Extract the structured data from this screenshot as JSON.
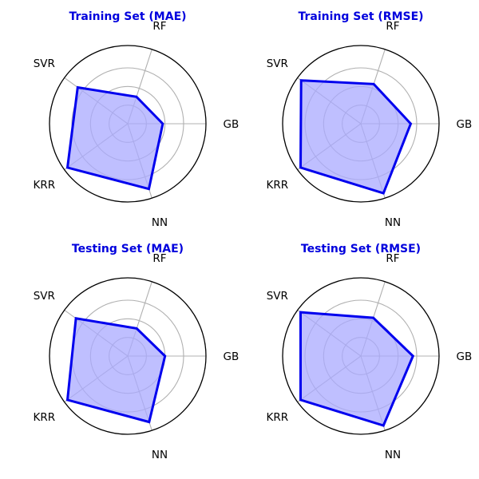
{
  "colors": {
    "series": "#0000ee",
    "fill": "#aaaaff",
    "grid": "#b0b0b0",
    "title": "#0000dd",
    "outer_circle": "#000000"
  },
  "chart_data": [
    {
      "type": "radar",
      "title": "Training Set (MAE)",
      "axes": [
        "GB",
        "RF",
        "SVR",
        "KRR",
        "NN"
      ],
      "values": [
        0.47,
        0.38,
        0.83,
        1.0,
        0.92
      ],
      "rmax": 1.05,
      "grid_rings": [
        0.25,
        0.5,
        0.75
      ],
      "grid": true,
      "legend": "none"
    },
    {
      "type": "radar",
      "title": "Training Set (RMSE)",
      "axes": [
        "GB",
        "RF",
        "SVR",
        "KRR",
        "NN"
      ],
      "values": [
        0.67,
        0.56,
        0.99,
        1.0,
        0.98
      ],
      "rmax": 1.05,
      "grid_rings": [
        0.25,
        0.5,
        0.75
      ],
      "grid": true,
      "legend": "none"
    },
    {
      "type": "radar",
      "title": "Testing Set (MAE)",
      "axes": [
        "GB",
        "RF",
        "SVR",
        "KRR",
        "NN"
      ],
      "values": [
        0.5,
        0.39,
        0.86,
        1.0,
        0.93
      ],
      "rmax": 1.05,
      "grid_rings": [
        0.25,
        0.5,
        0.75
      ],
      "grid": true,
      "legend": "none"
    },
    {
      "type": "radar",
      "title": "Testing Set (RMSE)",
      "axes": [
        "GB",
        "RF",
        "SVR",
        "KRR",
        "NN"
      ],
      "values": [
        0.7,
        0.54,
        1.0,
        1.0,
        0.98
      ],
      "rmax": 1.05,
      "grid_rings": [
        0.25,
        0.5,
        0.75
      ],
      "grid": true,
      "legend": "none"
    }
  ]
}
